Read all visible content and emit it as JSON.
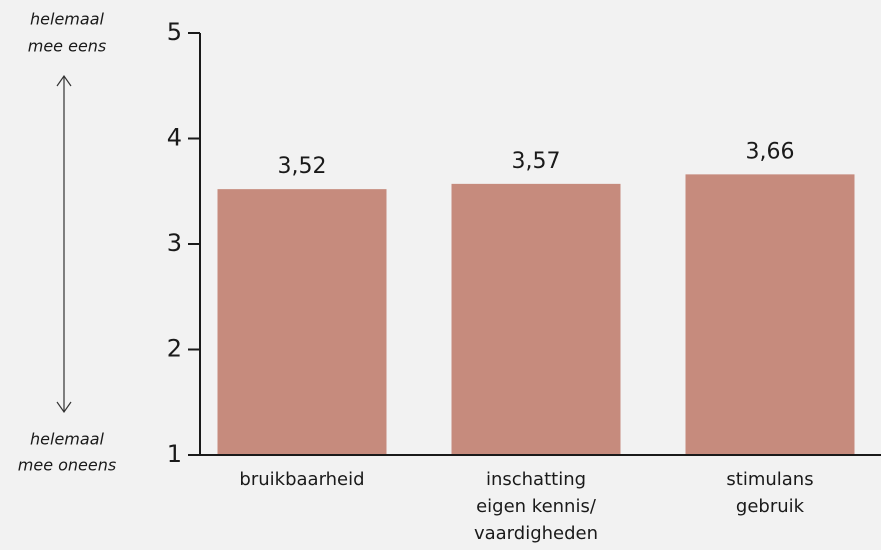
{
  "chart_data": {
    "type": "bar",
    "annotations": {
      "top": [
        "helemaal",
        "mee eens"
      ],
      "bottom": [
        "helemaal",
        "mee oneens"
      ]
    },
    "categories": [
      [
        "bruikbaarheid"
      ],
      [
        "inschatting",
        "eigen kennis/",
        "vaardigheden"
      ],
      [
        "stimulans",
        "gebruik"
      ]
    ],
    "values": [
      3.52,
      3.57,
      3.66
    ],
    "value_labels": [
      "3,52",
      "3,57",
      "3,66"
    ],
    "color": "#c68b7d",
    "ylim": [
      1,
      5
    ],
    "yticks": [
      1,
      2,
      3,
      4,
      5
    ]
  }
}
